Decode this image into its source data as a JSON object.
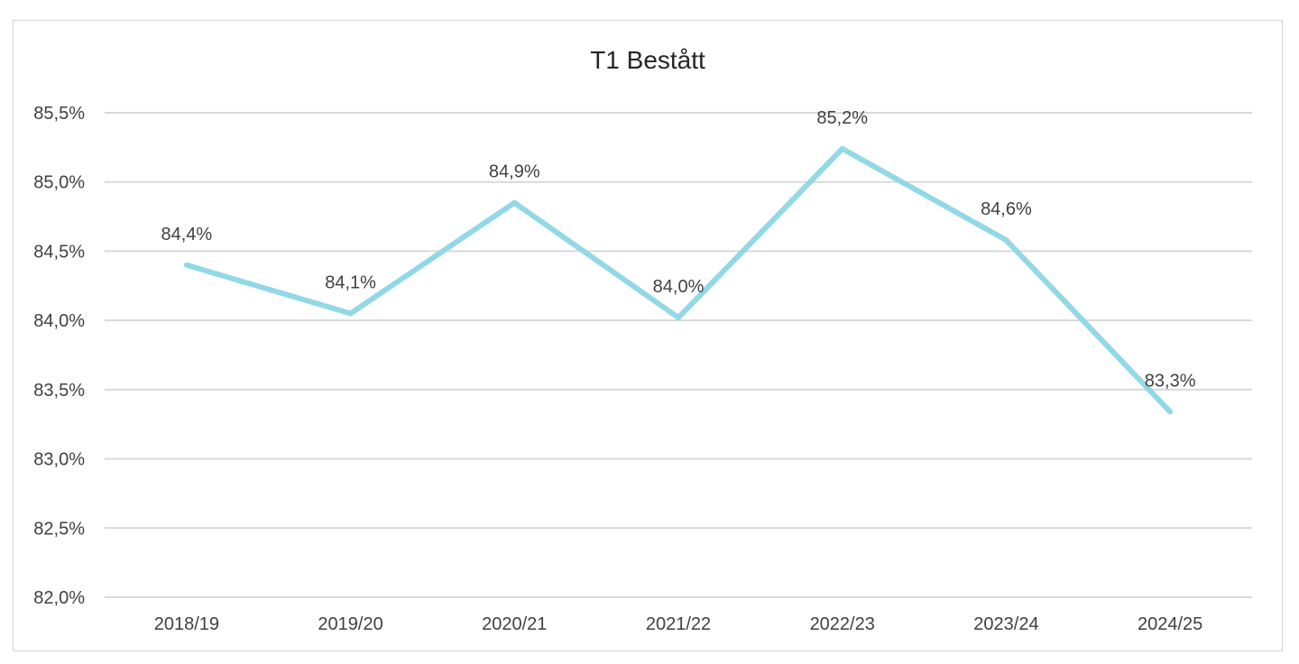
{
  "chart_data": {
    "type": "line",
    "title": "T1 Bestått",
    "xlabel": "",
    "ylabel": "",
    "categories": [
      "2018/19",
      "2019/20",
      "2020/21",
      "2021/22",
      "2022/23",
      "2023/24",
      "2024/25"
    ],
    "series": [
      {
        "values": [
          84.4,
          84.05,
          84.85,
          84.02,
          85.24,
          84.58,
          83.34
        ],
        "data_labels": [
          "84,4%",
          "84,1%",
          "84,9%",
          "84,0%",
          "85,2%",
          "84,6%",
          "83,3%"
        ],
        "color": "#92d8e6"
      }
    ],
    "ylim": [
      82.0,
      85.5
    ],
    "y_ticks": [
      82.0,
      82.5,
      83.0,
      83.5,
      84.0,
      84.5,
      85.0,
      85.5
    ],
    "y_tick_labels": [
      "82,0%",
      "82,5%",
      "83,0%",
      "83,5%",
      "84,0%",
      "84,5%",
      "85,0%",
      "85,5%"
    ],
    "grid": true,
    "legend": "none"
  }
}
